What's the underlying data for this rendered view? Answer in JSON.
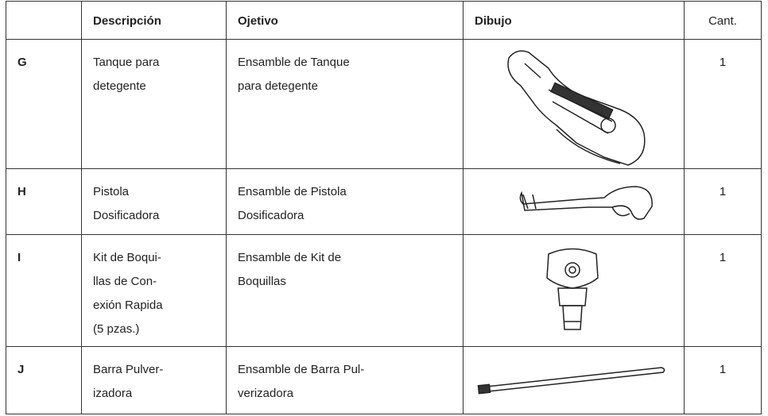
{
  "table": {
    "header": [
      "",
      "Descripción",
      "Ojetivo",
      "Dibujo",
      "Cant."
    ],
    "rows": [
      {
        "id": "G",
        "description": [
          "Tanque para",
          "detegente"
        ],
        "objective": [
          "Ensamble de Tanque",
          "para detegente"
        ],
        "quantity": 1
      },
      {
        "id": "H",
        "description": [
          "Pistola",
          "Dosificadora"
        ],
        "objective": [
          "Ensamble de Pistola",
          "Dosificadora"
        ],
        "quantity": 1
      },
      {
        "id": "I",
        "description": [
          "Kit de Boqui-",
          "llas de Con-",
          "exión Rapida",
          "(5 pzas.)"
        ],
        "objective": [
          "Ensamble de Kit de",
          "Boquillas"
        ],
        "quantity": 1
      },
      {
        "id": "J",
        "description": [
          "Barra Pulver-",
          "izadora"
        ],
        "objective": [
          "Ensamble de Barra Pul-",
          "verizadora"
        ],
        "quantity": 1
      }
    ]
  }
}
